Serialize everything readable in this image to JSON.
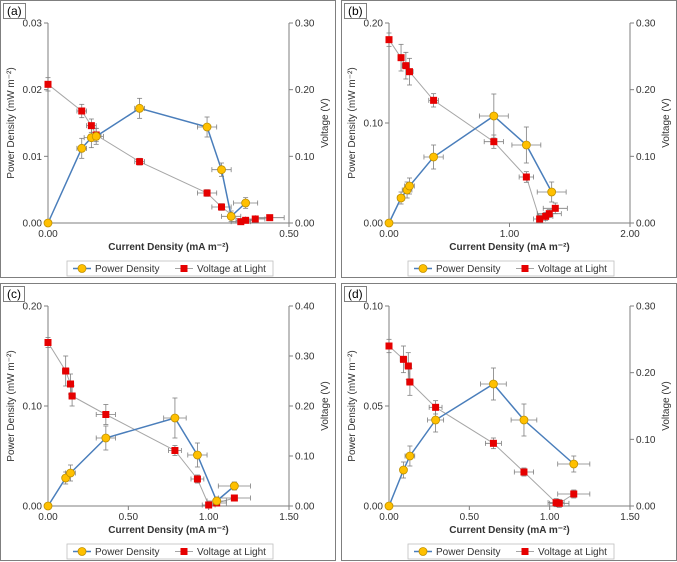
{
  "colors": {
    "power_line": "#4a7ebb",
    "power_marker": "#ffc000",
    "power_marker_edge": "#bf9000",
    "voltage_line": "#a6a6a6",
    "voltage_marker": "#e60000",
    "errorbar": "#7f7f7f",
    "axis": "#7f7f7f"
  },
  "legend": {
    "power": "Power Density",
    "voltage": "Voltage at Light"
  },
  "chart_data": [
    {
      "type": "scatter",
      "panel_label": "(a)",
      "xlabel": "Current Density (mA m⁻²)",
      "ylabel_left": "Power Density (mW m⁻²)",
      "ylabel_right": "Voltage (V)",
      "xlim": [
        0,
        0.5
      ],
      "xticks": [
        "0.00",
        "0.50"
      ],
      "ylim_left": [
        0,
        0.03
      ],
      "yticks_left": [
        "0.00",
        "0.01",
        "0.02",
        "0.03"
      ],
      "ylim_right": [
        0,
        0.3
      ],
      "yticks_right": [
        "0.00",
        "0.10",
        "0.20",
        "0.30"
      ],
      "series": [
        {
          "name": "Power Density",
          "axis": "left",
          "x": [
            0.0,
            0.07,
            0.09,
            0.1,
            0.19,
            0.33,
            0.36,
            0.38,
            0.41
          ],
          "y": [
            0.0,
            0.0112,
            0.0128,
            0.013,
            0.0172,
            0.0144,
            0.008,
            0.001,
            0.003
          ],
          "xerr": [
            0,
            0.01,
            0.015,
            0.015,
            0.01,
            0.02,
            0.02,
            0.02,
            0.025
          ],
          "yerr": [
            0,
            0.0015,
            0.0015,
            0.0012,
            0.0015,
            0.0015,
            0.001,
            0.0008,
            0.0008
          ]
        },
        {
          "name": "Voltage at Light",
          "axis": "right",
          "x": [
            0.0,
            0.07,
            0.09,
            0.1,
            0.19,
            0.33,
            0.36,
            0.4,
            0.41,
            0.43,
            0.46
          ],
          "y": [
            0.208,
            0.168,
            0.146,
            0.132,
            0.092,
            0.045,
            0.024,
            0.002,
            0.004,
            0.006,
            0.008
          ],
          "xerr": [
            0,
            0.01,
            0.01,
            0.01,
            0.01,
            0.02,
            0.02,
            0.02,
            0.02,
            0.02,
            0.03
          ],
          "yerr": [
            0.01,
            0.01,
            0.01,
            0.01,
            0.005,
            0.005,
            0.005,
            0.004,
            0.004,
            0.004,
            0.004
          ]
        }
      ]
    },
    {
      "type": "scatter",
      "panel_label": "(b)",
      "xlabel": "Current Density (mA m⁻²)",
      "ylabel_left": "Power Density (mW m⁻²)",
      "ylabel_right": "Voltage (V)",
      "xlim": [
        0,
        2.0
      ],
      "xticks": [
        "0.00",
        "1.00",
        "2.00"
      ],
      "ylim_left": [
        0,
        0.2
      ],
      "yticks_left": [
        "0.00",
        "0.10",
        "0.20"
      ],
      "ylim_right": [
        0,
        0.3
      ],
      "yticks_right": [
        "0.00",
        "0.10",
        "0.20",
        "0.30"
      ],
      "series": [
        {
          "name": "Power Density",
          "axis": "left",
          "x": [
            0.0,
            0.1,
            0.15,
            0.17,
            0.37,
            0.87,
            1.14,
            1.35
          ],
          "y": [
            0.0,
            0.025,
            0.033,
            0.037,
            0.066,
            0.107,
            0.078,
            0.031
          ],
          "xerr": [
            0,
            0.03,
            0.04,
            0.04,
            0.08,
            0.12,
            0.12,
            0.12
          ],
          "yerr": [
            0,
            0.006,
            0.008,
            0.008,
            0.012,
            0.022,
            0.018,
            0.01
          ]
        },
        {
          "name": "Voltage at Light",
          "axis": "right",
          "x": [
            0.0,
            0.1,
            0.14,
            0.17,
            0.37,
            0.87,
            1.14,
            1.25,
            1.3,
            1.33,
            1.38
          ],
          "y": [
            0.275,
            0.248,
            0.236,
            0.227,
            0.184,
            0.122,
            0.069,
            0.006,
            0.01,
            0.014,
            0.022
          ],
          "xerr": [
            0,
            0.02,
            0.03,
            0.03,
            0.04,
            0.08,
            0.06,
            0.05,
            0.06,
            0.1,
            0.1
          ],
          "yerr": [
            0.01,
            0.02,
            0.02,
            0.02,
            0.01,
            0.01,
            0.008,
            0.006,
            0.006,
            0.006,
            0.008
          ]
        }
      ]
    },
    {
      "type": "scatter",
      "panel_label": "(c)",
      "xlabel": "Current Density (mA m⁻²)",
      "ylabel_left": "Power Density (mW m⁻²)",
      "ylabel_right": "Voltage (V)",
      "xlim": [
        0,
        1.5
      ],
      "xticks": [
        "0.00",
        "0.50",
        "1.00",
        "1.50"
      ],
      "ylim_left": [
        0,
        0.2
      ],
      "yticks_left": [
        "0.00",
        "0.10",
        "0.20"
      ],
      "ylim_right": [
        0,
        0.4
      ],
      "yticks_right": [
        "0.00",
        "0.10",
        "0.20",
        "0.30",
        "0.40"
      ],
      "series": [
        {
          "name": "Power Density",
          "axis": "left",
          "x": [
            0.0,
            0.11,
            0.14,
            0.36,
            0.79,
            0.93,
            1.05,
            1.16
          ],
          "y": [
            0.0,
            0.028,
            0.033,
            0.068,
            0.088,
            0.051,
            0.005,
            0.02
          ],
          "xerr": [
            0,
            0.02,
            0.03,
            0.06,
            0.07,
            0.06,
            0.06,
            0.1
          ],
          "yerr": [
            0,
            0.006,
            0.008,
            0.012,
            0.02,
            0.012,
            0.004,
            0.004
          ]
        },
        {
          "name": "Voltage at Light",
          "axis": "right",
          "x": [
            0.0,
            0.11,
            0.14,
            0.15,
            0.36,
            0.79,
            0.93,
            1.0,
            1.05,
            1.16
          ],
          "y": [
            0.327,
            0.27,
            0.244,
            0.22,
            0.183,
            0.111,
            0.054,
            0.002,
            0.006,
            0.016
          ],
          "xerr": [
            0,
            0.02,
            0.02,
            0.02,
            0.06,
            0.04,
            0.04,
            0.04,
            0.06,
            0.1
          ],
          "yerr": [
            0.01,
            0.03,
            0.02,
            0.02,
            0.02,
            0.01,
            0.008,
            0.006,
            0.006,
            0.006
          ]
        }
      ]
    },
    {
      "type": "scatter",
      "panel_label": "(d)",
      "xlabel": "Current Density (mA m⁻²)",
      "ylabel_left": "Power Density (mW m⁻²)",
      "ylabel_right": "Voltage (V)",
      "xlim": [
        0,
        1.5
      ],
      "xticks": [
        "0.00",
        "0.50",
        "1.00",
        "1.50"
      ],
      "ylim_left": [
        0,
        0.1
      ],
      "yticks_left": [
        "0.00",
        "0.05",
        "0.10"
      ],
      "ylim_right": [
        0,
        0.3
      ],
      "yticks_right": [
        "0.00",
        "0.10",
        "0.20",
        "0.30"
      ],
      "series": [
        {
          "name": "Power Density",
          "axis": "left",
          "x": [
            0.0,
            0.09,
            0.13,
            0.29,
            0.65,
            0.84,
            1.15
          ],
          "y": [
            0.0,
            0.018,
            0.025,
            0.043,
            0.061,
            0.043,
            0.021
          ],
          "xerr": [
            0,
            0.02,
            0.03,
            0.05,
            0.08,
            0.08,
            0.1
          ],
          "yerr": [
            0,
            0.004,
            0.005,
            0.006,
            0.008,
            0.008,
            0.004
          ]
        },
        {
          "name": "Voltage at Light",
          "axis": "right",
          "x": [
            0.0,
            0.09,
            0.12,
            0.13,
            0.29,
            0.65,
            0.84,
            1.04,
            1.06,
            1.15
          ],
          "y": [
            0.24,
            0.22,
            0.21,
            0.186,
            0.148,
            0.094,
            0.051,
            0.005,
            0.004,
            0.018
          ],
          "xerr": [
            0,
            0.02,
            0.02,
            0.02,
            0.04,
            0.05,
            0.06,
            0.05,
            0.06,
            0.1
          ],
          "yerr": [
            0.01,
            0.02,
            0.02,
            0.02,
            0.01,
            0.008,
            0.006,
            0.006,
            0.006,
            0.006
          ]
        }
      ]
    }
  ]
}
